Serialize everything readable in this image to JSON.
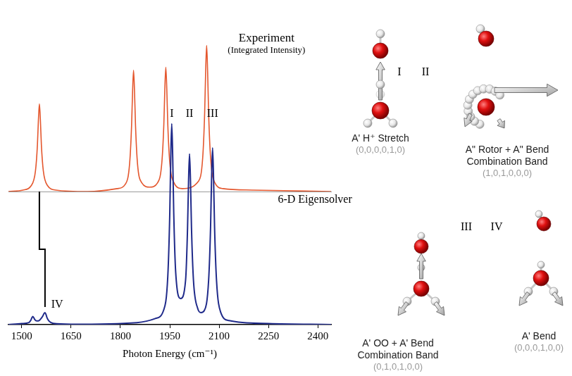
{
  "chart_data": [
    {
      "type": "line",
      "title": "Experiment",
      "subtitle": "(Integrated Intensity)",
      "color": "#e4572e",
      "x": [
        1460,
        1504,
        1529,
        1542,
        1548,
        1551,
        1554,
        1557,
        1560,
        1566,
        1579,
        1604,
        1700,
        1790,
        1815,
        1828,
        1834,
        1837,
        1840,
        1843,
        1846,
        1852,
        1865,
        1889,
        1913,
        1926,
        1932,
        1935,
        1938,
        1941,
        1944,
        1950,
        1963,
        1988,
        2037,
        2050,
        2056,
        2059,
        2062,
        2065,
        2068,
        2074,
        2087,
        2112,
        2200,
        2440
      ],
      "values": [
        0,
        0.01,
        0.04,
        0.14,
        0.32,
        0.49,
        0.6,
        0.49,
        0.32,
        0.14,
        0.04,
        0.01,
        0,
        0.02,
        0.05,
        0.19,
        0.45,
        0.68,
        0.83,
        0.68,
        0.45,
        0.19,
        0.06,
        0.03,
        0.06,
        0.2,
        0.46,
        0.7,
        0.85,
        0.7,
        0.46,
        0.2,
        0.06,
        0.02,
        0.07,
        0.23,
        0.54,
        0.82,
        1.0,
        0.82,
        0.54,
        0.23,
        0.06,
        0.02,
        0.01,
        0
      ],
      "xlim": [
        1460,
        2440
      ],
      "ylim": [
        0,
        1.07
      ],
      "tick_labels": false,
      "grid": false
    },
    {
      "type": "line",
      "title": "6-D Eigensolver",
      "xlabel": "Photon Energy (cm⁻¹)",
      "color": "#1f2a8a",
      "x": [
        1460,
        1500,
        1522,
        1528,
        1531,
        1534,
        1537,
        1540,
        1546,
        1553,
        1559,
        1565,
        1568,
        1571,
        1574,
        1577,
        1583,
        1596,
        1650,
        1850,
        1906,
        1931,
        1944,
        1950,
        1953,
        1956,
        1959,
        1962,
        1968,
        1983,
        1998,
        2004,
        2007,
        2010,
        2013,
        2016,
        2022,
        2035,
        2045,
        2055,
        2068,
        2074,
        2077,
        2080,
        2083,
        2086,
        2092,
        2105,
        2130,
        2250,
        2440
      ],
      "values": [
        0,
        0.005,
        0.01,
        0.022,
        0.033,
        0.04,
        0.034,
        0.025,
        0.018,
        0.02,
        0.03,
        0.045,
        0.055,
        0.06,
        0.05,
        0.035,
        0.018,
        0.006,
        0.002,
        0.01,
        0.03,
        0.07,
        0.24,
        0.55,
        0.83,
        1.0,
        0.83,
        0.56,
        0.26,
        0.13,
        0.22,
        0.48,
        0.71,
        0.85,
        0.71,
        0.48,
        0.22,
        0.08,
        0.06,
        0.07,
        0.22,
        0.49,
        0.73,
        0.88,
        0.73,
        0.49,
        0.22,
        0.06,
        0.02,
        0.005,
        0
      ],
      "xlim": [
        1460,
        2440
      ],
      "xticks": [
        1500,
        1650,
        1800,
        1950,
        2100,
        2250,
        2400
      ],
      "ylim": [
        0,
        1.09
      ],
      "tick_labels": "x",
      "grid": false,
      "annotations": [
        {
          "text": "I",
          "x": 1956,
          "y": 1.05
        },
        {
          "text": "II",
          "x": 2010,
          "y": 1.05
        },
        {
          "text": "III",
          "x": 2080,
          "y": 1.05
        },
        {
          "text": "IV",
          "x": 1608,
          "y": 0.1
        }
      ]
    }
  ],
  "modes": [
    {
      "label": "I",
      "name": [
        "A' H⁺ Stretch"
      ],
      "quanta": "(0,0,0,0,1,0)"
    },
    {
      "label": "II",
      "name": [
        "A\" Rotor + A\" Bend",
        "Combination Band"
      ],
      "quanta": "(1,0,1,0,0,0)"
    },
    {
      "label": "III",
      "name": [
        "A' OO + A' Bend",
        "Combination Band"
      ],
      "quanta": "(0,1,0,1,0,0)"
    },
    {
      "label": "IV",
      "name": [
        "A' Bend"
      ],
      "quanta": "(0,0,0,1,0,0)"
    }
  ]
}
